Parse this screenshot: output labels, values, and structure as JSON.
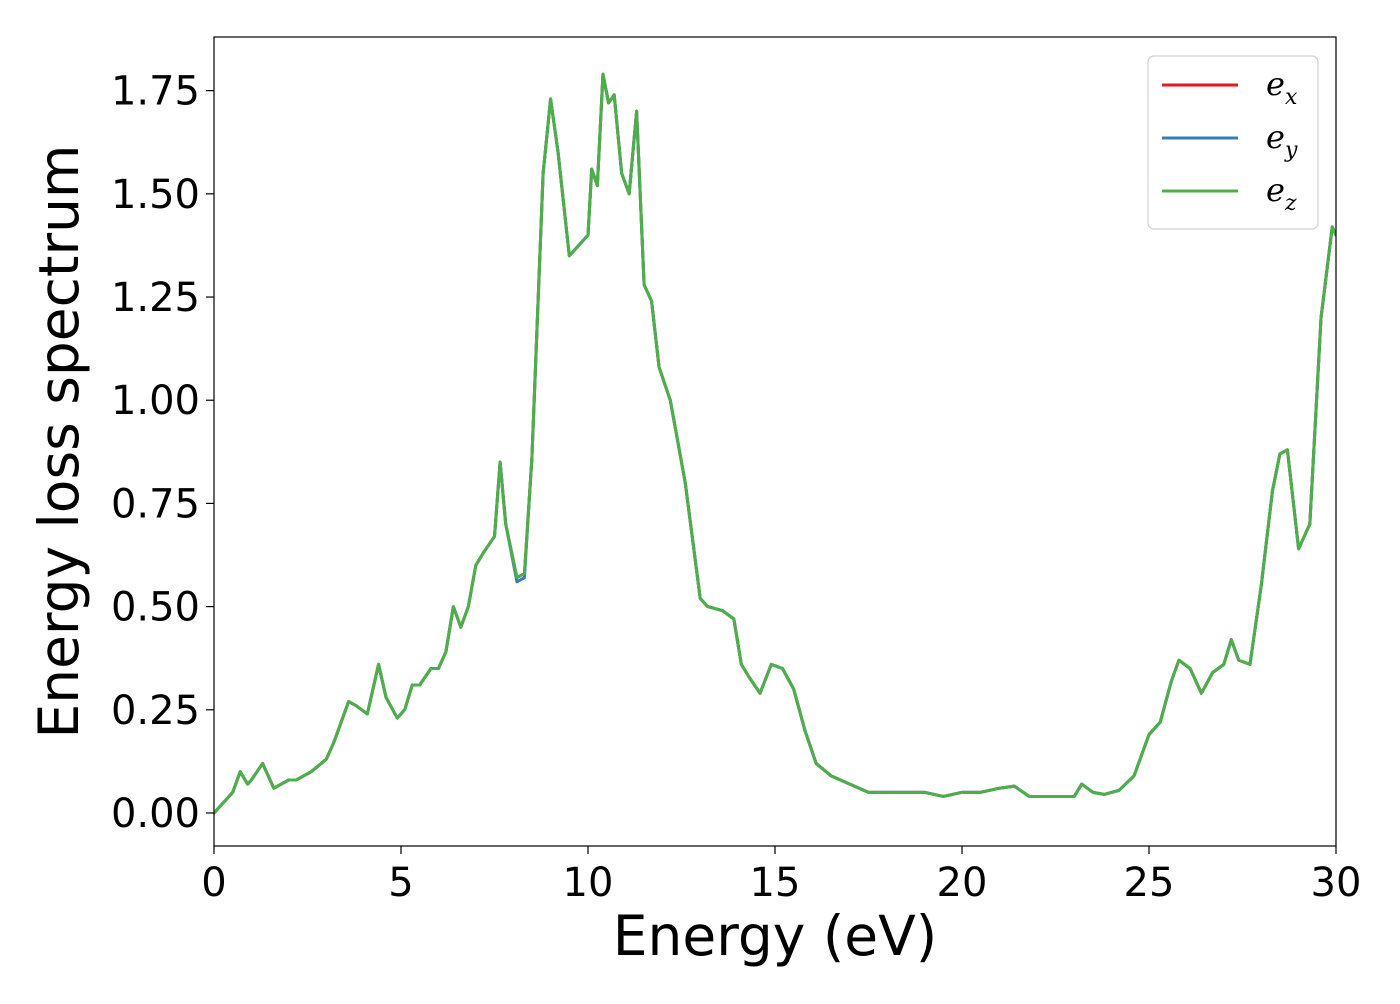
{
  "chart_data": {
    "type": "line",
    "title": "",
    "xlabel": "Energy (eV)",
    "ylabel": "Energy loss spectrum",
    "xlim": [
      0,
      30
    ],
    "ylim": [
      -0.08,
      1.88
    ],
    "x_ticks": [
      0,
      5,
      10,
      15,
      20,
      25,
      30
    ],
    "x_tick_labels": [
      "0",
      "5",
      "10",
      "15",
      "20",
      "25",
      "30"
    ],
    "y_ticks": [
      0.0,
      0.25,
      0.5,
      0.75,
      1.0,
      1.25,
      1.5,
      1.75
    ],
    "y_tick_labels": [
      "0.00",
      "0.25",
      "0.50",
      "0.75",
      "1.00",
      "1.25",
      "1.50",
      "1.75"
    ],
    "grid": false,
    "legend_position": "top-right",
    "series": [
      {
        "name": "e_x",
        "legend_base": "e",
        "legend_sub": "x",
        "color": "#e41a1c",
        "x": [
          0,
          0.5,
          0.7,
          0.9,
          1.0,
          1.3,
          1.6,
          2.0,
          2.2,
          2.6,
          3.0,
          3.2,
          3.6,
          3.8,
          4.1,
          4.4,
          4.6,
          4.9,
          5.1,
          5.3,
          5.5,
          5.8,
          6.0,
          6.2,
          6.4,
          6.6,
          6.8,
          7.0,
          7.2,
          7.5,
          7.65,
          7.8,
          8.1,
          8.3,
          8.5,
          8.8,
          9.0,
          9.2,
          9.5,
          9.8,
          10.0,
          10.1,
          10.25,
          10.4,
          10.55,
          10.7,
          10.9,
          11.1,
          11.3,
          11.5,
          11.7,
          11.9,
          12.2,
          12.6,
          13.0,
          13.2,
          13.6,
          13.9,
          14.1,
          14.3,
          14.6,
          14.9,
          15.2,
          15.5,
          15.8,
          16.1,
          16.5,
          17.0,
          17.5,
          18.0,
          18.5,
          19.0,
          19.5,
          20.0,
          20.5,
          21.0,
          21.4,
          21.8,
          22.2,
          22.6,
          23.0,
          23.2,
          23.5,
          23.8,
          24.2,
          24.6,
          25.0,
          25.3,
          25.6,
          25.8,
          26.1,
          26.4,
          26.7,
          27.0,
          27.2,
          27.4,
          27.7,
          28.0,
          28.3,
          28.5,
          28.7,
          29.0,
          29.3,
          29.6,
          29.9,
          30.0
        ],
        "values": [
          0.0,
          0.05,
          0.1,
          0.07,
          0.08,
          0.12,
          0.06,
          0.08,
          0.08,
          0.1,
          0.13,
          0.17,
          0.27,
          0.26,
          0.24,
          0.36,
          0.28,
          0.23,
          0.25,
          0.31,
          0.31,
          0.35,
          0.35,
          0.39,
          0.5,
          0.45,
          0.5,
          0.6,
          0.63,
          0.67,
          0.85,
          0.7,
          0.57,
          0.58,
          0.86,
          1.55,
          1.73,
          1.6,
          1.35,
          1.38,
          1.4,
          1.56,
          1.52,
          1.79,
          1.72,
          1.74,
          1.55,
          1.5,
          1.7,
          1.28,
          1.24,
          1.08,
          1.0,
          0.8,
          0.52,
          0.5,
          0.49,
          0.47,
          0.36,
          0.33,
          0.29,
          0.36,
          0.35,
          0.3,
          0.2,
          0.12,
          0.09,
          0.07,
          0.05,
          0.05,
          0.05,
          0.05,
          0.04,
          0.05,
          0.05,
          0.06,
          0.065,
          0.04,
          0.04,
          0.04,
          0.04,
          0.07,
          0.05,
          0.045,
          0.055,
          0.09,
          0.19,
          0.22,
          0.32,
          0.37,
          0.35,
          0.29,
          0.34,
          0.36,
          0.42,
          0.37,
          0.36,
          0.55,
          0.78,
          0.87,
          0.88,
          0.64,
          0.7,
          1.2,
          1.42,
          1.4
        ]
      },
      {
        "name": "e_y",
        "legend_base": "e",
        "legend_sub": "y",
        "color": "#377eb8",
        "x": [
          0,
          0.5,
          0.7,
          0.9,
          1.0,
          1.3,
          1.6,
          2.0,
          2.2,
          2.6,
          3.0,
          3.2,
          3.6,
          3.8,
          4.1,
          4.4,
          4.6,
          4.9,
          5.1,
          5.3,
          5.5,
          5.8,
          6.0,
          6.2,
          6.4,
          6.6,
          6.8,
          7.0,
          7.2,
          7.5,
          7.65,
          7.8,
          8.1,
          8.3,
          8.5,
          8.8,
          9.0,
          9.2,
          9.5,
          9.8,
          10.0,
          10.1,
          10.25,
          10.4,
          10.55,
          10.7,
          10.9,
          11.1,
          11.3,
          11.5,
          11.7,
          11.9,
          12.2,
          12.6,
          13.0,
          13.2,
          13.6,
          13.9,
          14.1,
          14.3,
          14.6,
          14.9,
          15.2,
          15.5,
          15.8,
          16.1,
          16.5,
          17.0,
          17.5,
          18.0,
          18.5,
          19.0,
          19.5,
          20.0,
          20.5,
          21.0,
          21.4,
          21.8,
          22.2,
          22.6,
          23.0,
          23.2,
          23.5,
          23.8,
          24.2,
          24.6,
          25.0,
          25.3,
          25.6,
          25.8,
          26.1,
          26.4,
          26.7,
          27.0,
          27.2,
          27.4,
          27.7,
          28.0,
          28.3,
          28.5,
          28.7,
          29.0,
          29.3,
          29.6,
          29.9,
          30.0
        ],
        "values": [
          0.0,
          0.05,
          0.1,
          0.07,
          0.08,
          0.12,
          0.06,
          0.08,
          0.08,
          0.1,
          0.13,
          0.17,
          0.27,
          0.26,
          0.24,
          0.36,
          0.28,
          0.23,
          0.25,
          0.31,
          0.31,
          0.35,
          0.35,
          0.39,
          0.5,
          0.45,
          0.5,
          0.6,
          0.63,
          0.67,
          0.85,
          0.7,
          0.56,
          0.57,
          0.86,
          1.55,
          1.73,
          1.6,
          1.35,
          1.38,
          1.4,
          1.56,
          1.52,
          1.79,
          1.72,
          1.74,
          1.55,
          1.5,
          1.7,
          1.28,
          1.24,
          1.08,
          1.0,
          0.8,
          0.52,
          0.5,
          0.49,
          0.47,
          0.36,
          0.33,
          0.29,
          0.36,
          0.35,
          0.3,
          0.2,
          0.12,
          0.09,
          0.07,
          0.05,
          0.05,
          0.05,
          0.05,
          0.04,
          0.05,
          0.05,
          0.06,
          0.065,
          0.04,
          0.04,
          0.04,
          0.04,
          0.07,
          0.05,
          0.045,
          0.055,
          0.09,
          0.19,
          0.22,
          0.32,
          0.37,
          0.35,
          0.29,
          0.34,
          0.36,
          0.42,
          0.37,
          0.36,
          0.55,
          0.78,
          0.87,
          0.88,
          0.64,
          0.7,
          1.2,
          1.42,
          1.4
        ]
      },
      {
        "name": "e_z",
        "legend_base": "e",
        "legend_sub": "z",
        "color": "#4daf4a",
        "x": [
          0,
          0.5,
          0.7,
          0.9,
          1.0,
          1.3,
          1.6,
          2.0,
          2.2,
          2.6,
          3.0,
          3.2,
          3.6,
          3.8,
          4.1,
          4.4,
          4.6,
          4.9,
          5.1,
          5.3,
          5.5,
          5.8,
          6.0,
          6.2,
          6.4,
          6.6,
          6.8,
          7.0,
          7.2,
          7.5,
          7.65,
          7.8,
          8.1,
          8.3,
          8.5,
          8.8,
          9.0,
          9.2,
          9.5,
          9.8,
          10.0,
          10.1,
          10.25,
          10.4,
          10.55,
          10.7,
          10.9,
          11.1,
          11.3,
          11.5,
          11.7,
          11.9,
          12.2,
          12.6,
          13.0,
          13.2,
          13.6,
          13.9,
          14.1,
          14.3,
          14.6,
          14.9,
          15.2,
          15.5,
          15.8,
          16.1,
          16.5,
          17.0,
          17.5,
          18.0,
          18.5,
          19.0,
          19.5,
          20.0,
          20.5,
          21.0,
          21.4,
          21.8,
          22.2,
          22.6,
          23.0,
          23.2,
          23.5,
          23.8,
          24.2,
          24.6,
          25.0,
          25.3,
          25.6,
          25.8,
          26.1,
          26.4,
          26.7,
          27.0,
          27.2,
          27.4,
          27.7,
          28.0,
          28.3,
          28.5,
          28.7,
          29.0,
          29.3,
          29.6,
          29.9,
          30.0
        ],
        "values": [
          0.0,
          0.05,
          0.1,
          0.07,
          0.08,
          0.12,
          0.06,
          0.08,
          0.08,
          0.1,
          0.13,
          0.17,
          0.27,
          0.26,
          0.24,
          0.36,
          0.28,
          0.23,
          0.25,
          0.31,
          0.31,
          0.35,
          0.35,
          0.39,
          0.5,
          0.45,
          0.5,
          0.6,
          0.63,
          0.67,
          0.85,
          0.7,
          0.57,
          0.58,
          0.86,
          1.55,
          1.73,
          1.6,
          1.35,
          1.38,
          1.4,
          1.56,
          1.52,
          1.79,
          1.72,
          1.74,
          1.55,
          1.5,
          1.7,
          1.28,
          1.24,
          1.08,
          1.0,
          0.8,
          0.52,
          0.5,
          0.49,
          0.47,
          0.36,
          0.33,
          0.29,
          0.36,
          0.35,
          0.3,
          0.2,
          0.12,
          0.09,
          0.07,
          0.05,
          0.05,
          0.05,
          0.05,
          0.04,
          0.05,
          0.05,
          0.06,
          0.065,
          0.04,
          0.04,
          0.04,
          0.04,
          0.07,
          0.05,
          0.045,
          0.055,
          0.09,
          0.19,
          0.22,
          0.32,
          0.37,
          0.35,
          0.29,
          0.34,
          0.36,
          0.42,
          0.37,
          0.36,
          0.55,
          0.78,
          0.87,
          0.88,
          0.64,
          0.7,
          1.2,
          1.42,
          1.4
        ]
      }
    ]
  }
}
